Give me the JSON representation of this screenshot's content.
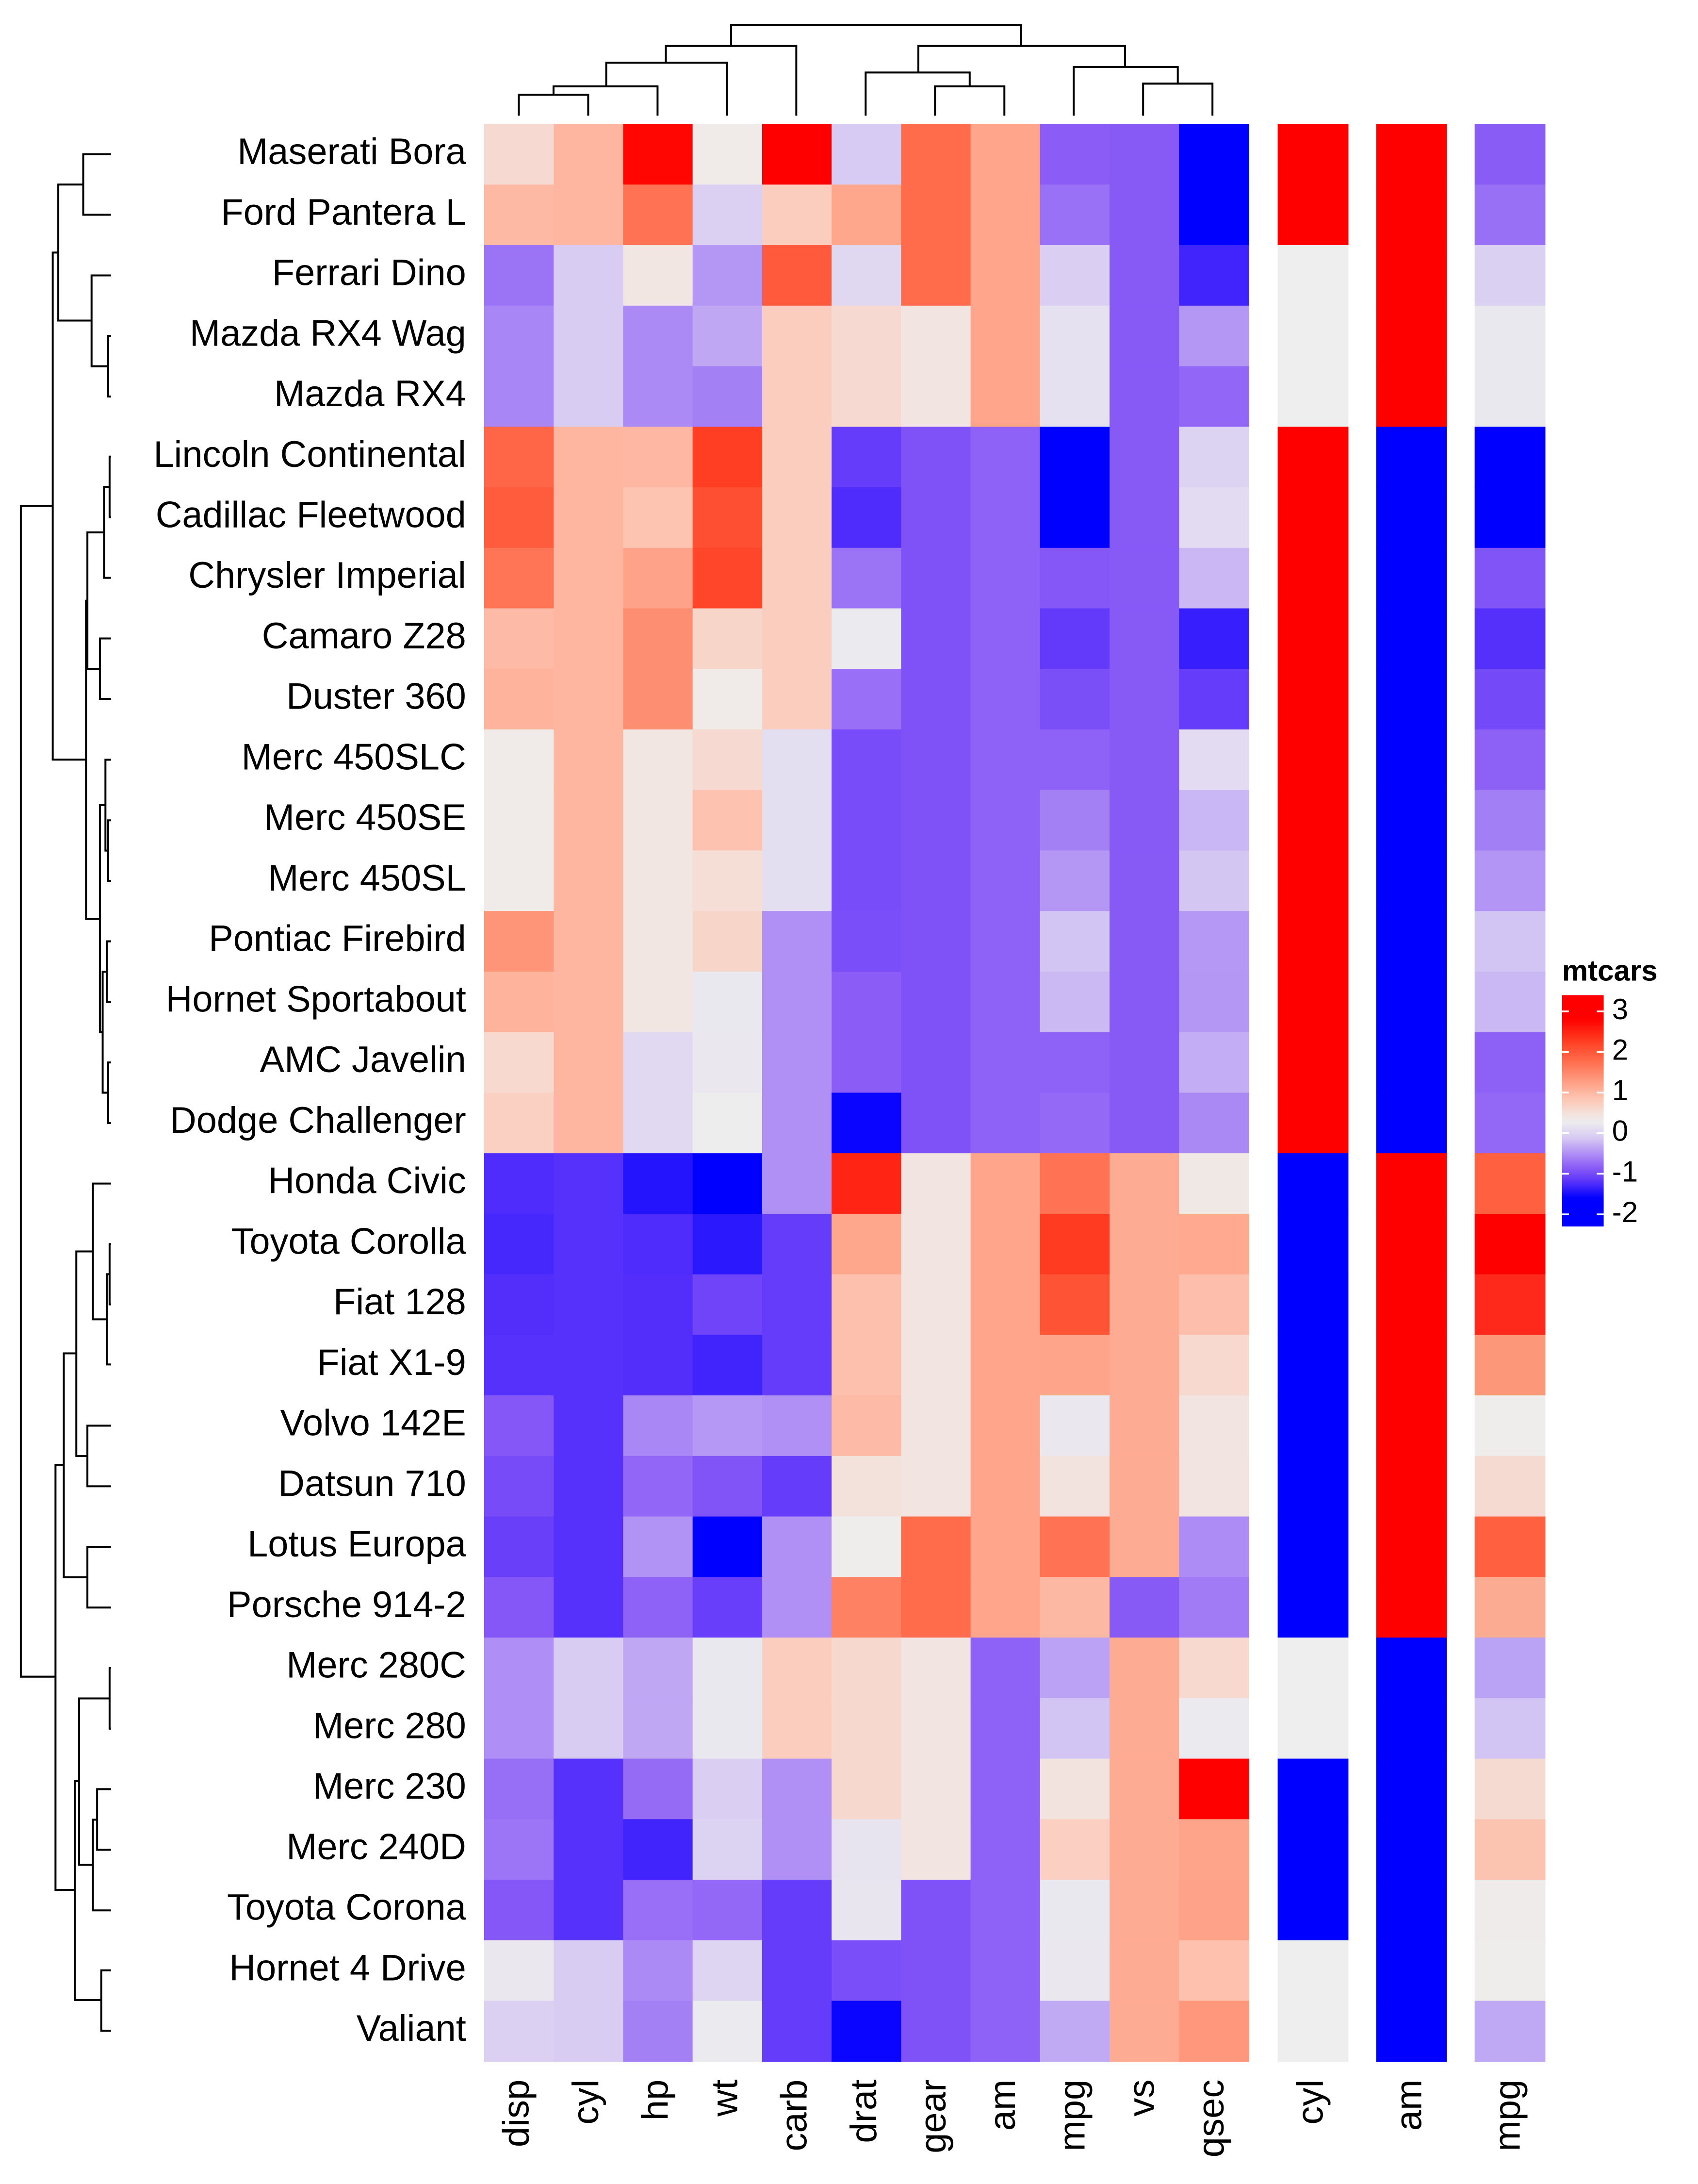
{
  "chart_data": {
    "type": "heatmap",
    "rows": [
      "Maserati Bora",
      "Ford Pantera L",
      "Ferrari Dino",
      "Mazda RX4 Wag",
      "Mazda RX4",
      "Lincoln Continental",
      "Cadillac Fleetwood",
      "Chrysler Imperial",
      "Camaro Z28",
      "Duster 360",
      "Merc 450SLC",
      "Merc 450SE",
      "Merc 450SL",
      "Pontiac Firebird",
      "Hornet Sportabout",
      "AMC Javelin",
      "Dodge Challenger",
      "Honda Civic",
      "Toyota Corolla",
      "Fiat 128",
      "Fiat X1-9",
      "Volvo 142E",
      "Datsun 710",
      "Lotus Europa",
      "Porsche 914-2",
      "Merc 280C",
      "Merc 280",
      "Merc 230",
      "Merc 240D",
      "Toyota Corona",
      "Hornet 4 Drive",
      "Valiant"
    ],
    "columns": [
      "disp",
      "cyl",
      "hp",
      "wt",
      "carb",
      "drat",
      "gear",
      "am",
      "mpg",
      "vs",
      "qsec"
    ],
    "values": [
      [
        0.57,
        1.01,
        2.75,
        0.36,
        3.21,
        -0.11,
        1.78,
        1.19,
        -0.84,
        -0.87,
        -1.82
      ],
      [
        0.97,
        1.01,
        1.71,
        -0.05,
        0.74,
        1.17,
        1.78,
        1.19,
        -0.71,
        -0.87,
        -1.87
      ],
      [
        -0.69,
        -0.1,
        0.41,
        -0.46,
        1.97,
        0.04,
        1.78,
        1.19,
        -0.06,
        -0.87,
        -1.31
      ],
      [
        -0.57,
        -0.1,
        -0.54,
        -0.35,
        0.74,
        0.57,
        0.42,
        1.19,
        0.15,
        -0.87,
        -0.46
      ],
      [
        -0.57,
        -0.1,
        -0.54,
        -0.61,
        0.74,
        0.57,
        0.42,
        1.19,
        0.15,
        -0.87,
        -0.78
      ],
      [
        1.85,
        1.01,
        0.99,
        2.26,
        0.74,
        -1.12,
        -0.93,
        -0.81,
        -1.61,
        -0.87,
        -0.02
      ],
      [
        1.95,
        1.01,
        0.85,
        2.08,
        0.74,
        -1.25,
        -0.93,
        -0.81,
        -1.61,
        -0.87,
        0.08
      ],
      [
        1.69,
        1.01,
        1.21,
        2.17,
        0.74,
        -0.69,
        -0.93,
        -0.81,
        -0.89,
        -0.87,
        -0.24
      ],
      [
        0.96,
        1.01,
        1.43,
        0.64,
        0.74,
        0.25,
        -0.93,
        -0.81,
        -1.13,
        -0.87,
        -1.36
      ],
      [
        1.04,
        1.01,
        1.43,
        0.36,
        0.74,
        -0.72,
        -0.93,
        -0.81,
        -0.96,
        -0.87,
        -1.12
      ],
      [
        0.36,
        1.01,
        0.41,
        0.58,
        0.12,
        -0.98,
        -0.93,
        -0.81,
        -0.81,
        -0.87,
        0.08
      ],
      [
        0.36,
        1.01,
        0.41,
        0.87,
        0.12,
        -0.98,
        -0.93,
        -0.81,
        -0.61,
        -0.87,
        -0.25
      ],
      [
        0.36,
        1.01,
        0.41,
        0.52,
        0.12,
        -0.98,
        -0.93,
        -0.81,
        -0.46,
        -0.87,
        -0.14
      ],
      [
        1.37,
        1.01,
        0.41,
        0.64,
        -0.5,
        -0.97,
        -0.93,
        -0.81,
        -0.15,
        -0.87,
        -0.45
      ],
      [
        1.04,
        1.01,
        0.41,
        0.23,
        -0.5,
        -0.84,
        -0.93,
        -0.81,
        -0.23,
        -0.87,
        -0.46
      ],
      [
        0.59,
        1.01,
        0.05,
        0.22,
        -0.5,
        -0.84,
        -0.93,
        -0.81,
        -0.81,
        -0.87,
        -0.31
      ],
      [
        0.7,
        1.01,
        0.05,
        0.31,
        -0.5,
        -1.56,
        -0.93,
        -0.81,
        -0.76,
        -0.87,
        -0.55
      ],
      [
        -1.25,
        -1.22,
        -1.44,
        -1.64,
        -0.5,
        2.49,
        0.42,
        1.19,
        1.71,
        1.12,
        0.38
      ],
      [
        -1.29,
        -1.22,
        -1.25,
        -1.41,
        -1.12,
        1.17,
        0.42,
        1.19,
        2.29,
        1.12,
        1.15
      ],
      [
        -1.23,
        -1.22,
        -1.23,
        -1.04,
        -1.12,
        0.9,
        0.42,
        1.19,
        2.04,
        1.12,
        0.91
      ],
      [
        -1.22,
        -1.22,
        -1.23,
        -1.31,
        -1.12,
        0.9,
        0.42,
        1.19,
        1.2,
        1.12,
        0.59
      ],
      [
        -0.89,
        -1.22,
        -0.56,
        -0.45,
        -0.5,
        0.96,
        0.42,
        1.19,
        0.22,
        1.12,
        0.42
      ],
      [
        -0.99,
        -1.22,
        -0.78,
        -0.92,
        -1.12,
        0.47,
        0.42,
        1.19,
        0.45,
        1.12,
        0.43
      ],
      [
        -1.09,
        -1.22,
        -0.49,
        -1.74,
        -0.5,
        0.32,
        1.78,
        1.19,
        1.71,
        1.12,
        -0.53
      ],
      [
        -0.89,
        -1.22,
        -0.81,
        -1.1,
        -0.5,
        1.56,
        1.78,
        1.19,
        0.98,
        -0.87,
        -0.64
      ],
      [
        -0.51,
        -0.1,
        -0.35,
        0.23,
        0.74,
        0.6,
        0.42,
        -0.81,
        -0.38,
        1.12,
        0.59
      ],
      [
        -0.51,
        -0.1,
        -0.35,
        0.23,
        0.74,
        0.6,
        0.42,
        -0.81,
        -0.15,
        1.12,
        0.25
      ],
      [
        -0.73,
        -1.22,
        -0.75,
        -0.07,
        -0.5,
        0.6,
        0.42,
        -0.81,
        0.45,
        1.12,
        2.83
      ],
      [
        -0.68,
        -1.22,
        -1.31,
        -0.03,
        -0.5,
        0.18,
        0.42,
        -0.81,
        0.72,
        1.12,
        1.2
      ],
      [
        -0.89,
        -1.22,
        -0.72,
        -0.77,
        -1.12,
        0.19,
        -0.93,
        -0.81,
        0.23,
        1.12,
        1.21
      ],
      [
        0.22,
        -0.1,
        -0.54,
        0.0,
        -1.12,
        -0.97,
        -0.93,
        -0.81,
        0.22,
        1.12,
        0.89
      ],
      [
        -0.05,
        -0.1,
        -0.61,
        0.25,
        -1.12,
        -1.56,
        -0.93,
        -0.81,
        -0.33,
        1.12,
        1.33
      ]
    ],
    "color_stops": [
      {
        "value": -1.6,
        "color": "#0000ff"
      },
      {
        "value": -1.2,
        "color": "#5a32fb"
      },
      {
        "value": -0.85,
        "color": "#8a5cf6"
      },
      {
        "value": -0.5,
        "color": "#b090f5"
      },
      {
        "value": -0.1,
        "color": "#d8ccf3"
      },
      {
        "value": 0.3,
        "color": "#eeeeee"
      },
      {
        "value": 0.8,
        "color": "#fdc9b8"
      },
      {
        "value": 1.2,
        "color": "#fea48a"
      },
      {
        "value": 1.8,
        "color": "#ff6a4a"
      },
      {
        "value": 2.3,
        "color": "#ff3a20"
      },
      {
        "value": 2.8,
        "color": "#ff0000"
      }
    ],
    "legend": {
      "title": "mtcars",
      "lim": [
        -2.3,
        3.4
      ],
      "ticks": [
        -2,
        -1,
        0,
        1,
        2,
        3
      ]
    },
    "annotations": [
      {
        "name": "cyl",
        "values": [
          8,
          8,
          6,
          6,
          6,
          8,
          8,
          8,
          8,
          8,
          8,
          8,
          8,
          8,
          8,
          8,
          8,
          4,
          4,
          4,
          4,
          4,
          4,
          4,
          4,
          6,
          6,
          4,
          4,
          4,
          6,
          6
        ],
        "color_stops": [
          {
            "value": 4,
            "color": "#0000ff"
          },
          {
            "value": 6,
            "color": "#eeeeee"
          },
          {
            "value": 8,
            "color": "#ff0000"
          }
        ]
      },
      {
        "name": "am",
        "values": [
          1,
          1,
          1,
          1,
          1,
          0,
          0,
          0,
          0,
          0,
          0,
          0,
          0,
          0,
          0,
          0,
          0,
          1,
          1,
          1,
          1,
          1,
          1,
          1,
          1,
          0,
          0,
          0,
          0,
          0,
          0,
          0
        ],
        "color_stops": [
          {
            "value": 0,
            "color": "#0000ff"
          },
          {
            "value": 1,
            "color": "#ff0000"
          }
        ]
      },
      {
        "name": "mpg",
        "values": [
          15,
          15.8,
          19.7,
          21,
          21,
          10.4,
          10.4,
          14.7,
          13.3,
          14.3,
          15.2,
          16.4,
          17.3,
          19.2,
          18.7,
          15.2,
          15.5,
          30.4,
          33.9,
          32.4,
          27.3,
          21.4,
          22.8,
          30.4,
          26,
          17.8,
          19.2,
          22.8,
          24.4,
          21.5,
          21.4,
          18.1
        ],
        "color_stops": [
          {
            "value": 10.4,
            "color": "#0000ff"
          },
          {
            "value": 13.3,
            "color": "#5530fb"
          },
          {
            "value": 15,
            "color": "#8a5cf6"
          },
          {
            "value": 17.5,
            "color": "#b59af5"
          },
          {
            "value": 19.5,
            "color": "#d8ccf3"
          },
          {
            "value": 21.3,
            "color": "#eeeeee"
          },
          {
            "value": 24,
            "color": "#fbcab9"
          },
          {
            "value": 27,
            "color": "#fd9c80"
          },
          {
            "value": 30.4,
            "color": "#ff6040"
          },
          {
            "value": 33.9,
            "color": "#ff0000"
          }
        ]
      }
    ]
  }
}
